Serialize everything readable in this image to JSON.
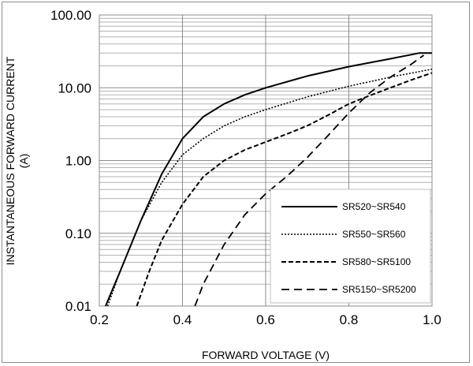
{
  "chart_data": {
    "type": "line",
    "xlabel": "FORWARD VOLTAGE (V)",
    "ylabel_line1": "INSTANTANEOUS FORWARD CURRENT",
    "ylabel_line2": "(A)",
    "xlim": [
      0.2,
      1.0
    ],
    "ylim": [
      0.01,
      100
    ],
    "yscale": "log",
    "grid": true,
    "legend": "bottom-right",
    "x_ticks": [
      "0.2",
      "0.4",
      "0.6",
      "0.8",
      "1.0"
    ],
    "y_ticks": [
      "0.01",
      "0.10",
      "1.00",
      "10.00",
      "100.00"
    ],
    "series": [
      {
        "name": "SR520~SR540",
        "style": "solid",
        "x": [
          0.215,
          0.25,
          0.3,
          0.35,
          0.4,
          0.45,
          0.5,
          0.55,
          0.6,
          0.7,
          0.8,
          0.9,
          0.97,
          1.0
        ],
        "y": [
          0.01,
          0.03,
          0.15,
          0.65,
          2.0,
          4.0,
          6.0,
          8.0,
          10.0,
          14.5,
          19.5,
          25.0,
          30.0,
          30.0
        ]
      },
      {
        "name": "SR550~SR560",
        "style": "dotted",
        "x": [
          0.22,
          0.25,
          0.3,
          0.35,
          0.4,
          0.45,
          0.5,
          0.55,
          0.6,
          0.7,
          0.8,
          0.9,
          1.0
        ],
        "y": [
          0.01,
          0.03,
          0.15,
          0.5,
          1.2,
          2.0,
          3.0,
          4.0,
          5.0,
          7.5,
          10.5,
          14.0,
          18.0
        ]
      },
      {
        "name": "SR580~SR5100",
        "style": "dashed",
        "x": [
          0.29,
          0.32,
          0.35,
          0.4,
          0.45,
          0.5,
          0.55,
          0.6,
          0.65,
          0.7,
          0.75,
          0.8,
          0.85,
          0.9,
          0.95,
          1.0
        ],
        "y": [
          0.01,
          0.03,
          0.08,
          0.25,
          0.6,
          1.0,
          1.4,
          1.8,
          2.3,
          3.0,
          4.2,
          6.0,
          7.8,
          10.0,
          12.8,
          16.0
        ]
      },
      {
        "name": "SR5150~SR5200",
        "style": "longdash",
        "x": [
          0.43,
          0.45,
          0.5,
          0.55,
          0.6,
          0.65,
          0.7,
          0.75,
          0.8,
          0.85,
          0.9,
          0.95,
          0.98
        ],
        "y": [
          0.01,
          0.02,
          0.07,
          0.18,
          0.35,
          0.6,
          1.1,
          2.2,
          4.5,
          8.5,
          14.0,
          21.0,
          28.0
        ]
      }
    ]
  }
}
